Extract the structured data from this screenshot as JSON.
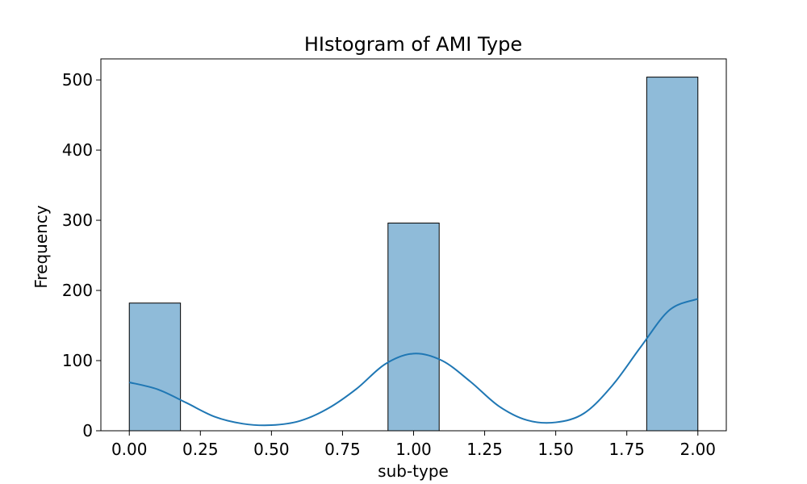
{
  "chart_data": {
    "type": "bar",
    "title": "HIstogram of AMI Type",
    "xlabel": "sub-type",
    "ylabel": "Frequency",
    "xlim": [
      -0.1,
      2.1
    ],
    "ylim": [
      0,
      530
    ],
    "x_ticks": [
      0.0,
      0.25,
      0.5,
      0.75,
      1.0,
      1.25,
      1.5,
      1.75,
      2.0
    ],
    "x_tick_labels": [
      "0.00",
      "0.25",
      "0.50",
      "0.75",
      "1.00",
      "1.25",
      "1.50",
      "1.75",
      "2.00"
    ],
    "y_ticks": [
      0,
      100,
      200,
      300,
      400,
      500
    ],
    "y_tick_labels": [
      "0",
      "100",
      "200",
      "300",
      "400",
      "500"
    ],
    "bins": [
      {
        "start": 0.0,
        "end": 0.18,
        "count": 182
      },
      {
        "start": 0.91,
        "end": 1.09,
        "count": 296
      },
      {
        "start": 1.82,
        "end": 2.0,
        "count": 504
      }
    ],
    "kde": {
      "x": [
        0.0,
        0.1,
        0.2,
        0.3,
        0.4,
        0.5,
        0.6,
        0.7,
        0.8,
        0.9,
        1.0,
        1.1,
        1.2,
        1.3,
        1.4,
        1.5,
        1.6,
        1.7,
        1.8,
        1.9,
        2.0
      ],
      "y": [
        69,
        59,
        40,
        20,
        10,
        8,
        14,
        32,
        60,
        95,
        110,
        100,
        70,
        35,
        15,
        12,
        25,
        65,
        120,
        172,
        188
      ]
    },
    "bar_color": "#8fbbd9",
    "bar_edge_color": "#000000",
    "line_color": "#1f77b4",
    "grid": false
  }
}
